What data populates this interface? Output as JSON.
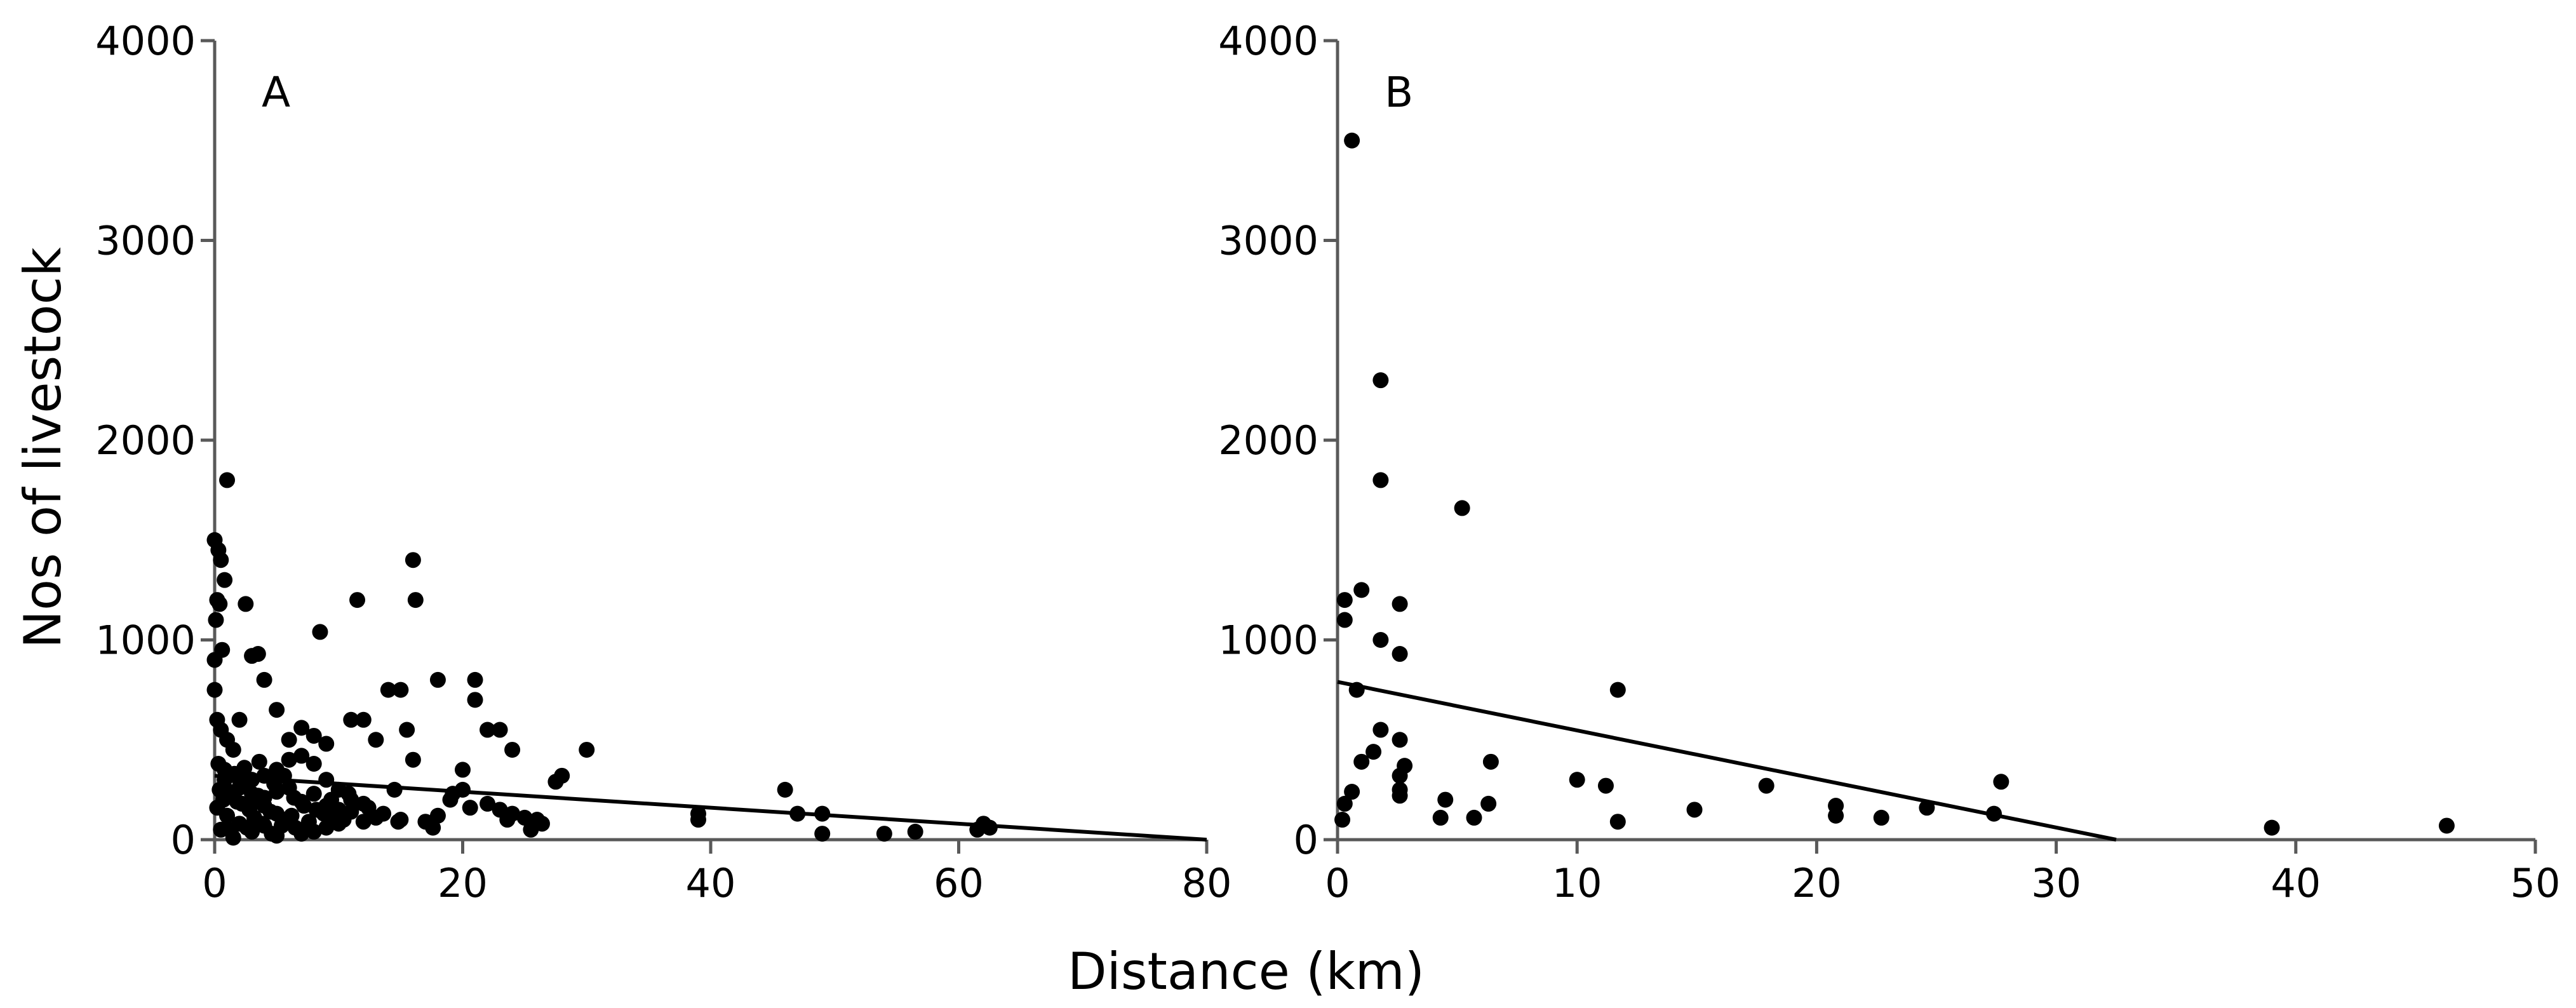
{
  "figure": {
    "ylabel": "Nos of livestock",
    "xlabel": "Distance (km)"
  },
  "chart_data": [
    {
      "type": "scatter",
      "panel_label": "A",
      "xlim": [
        0,
        80
      ],
      "ylim": [
        0,
        4000
      ],
      "x_ticks": [
        0,
        20,
        40,
        60,
        80
      ],
      "y_ticks": [
        0,
        1000,
        2000,
        3000,
        4000
      ],
      "points": [
        [
          0,
          1500
        ],
        [
          0.3,
          1450
        ],
        [
          0.5,
          1400
        ],
        [
          0.8,
          1300
        ],
        [
          0.2,
          1200
        ],
        [
          0.4,
          1180
        ],
        [
          0.1,
          1100
        ],
        [
          1,
          1800
        ],
        [
          0,
          900
        ],
        [
          0.6,
          950
        ],
        [
          0,
          750
        ],
        [
          0.2,
          600
        ],
        [
          0.5,
          550
        ],
        [
          1,
          500
        ],
        [
          1.5,
          450
        ],
        [
          0.3,
          380
        ],
        [
          0.8,
          350
        ],
        [
          2,
          300
        ],
        [
          2.5,
          280
        ],
        [
          0.4,
          250
        ],
        [
          1.2,
          240
        ],
        [
          3,
          230
        ],
        [
          3.5,
          220
        ],
        [
          0.7,
          200
        ],
        [
          1.8,
          190
        ],
        [
          2.2,
          180
        ],
        [
          4,
          170
        ],
        [
          0.2,
          160
        ],
        [
          2.8,
          150
        ],
        [
          4.5,
          140
        ],
        [
          5,
          130
        ],
        [
          1,
          120
        ],
        [
          3.2,
          110
        ],
        [
          5.5,
          100
        ],
        [
          6,
          90
        ],
        [
          2,
          80
        ],
        [
          4,
          70
        ],
        [
          6.5,
          60
        ],
        [
          0.5,
          50
        ],
        [
          3,
          40
        ],
        [
          7,
          30
        ],
        [
          5,
          20
        ],
        [
          1.5,
          10
        ],
        [
          3,
          300
        ],
        [
          4,
          320
        ],
        [
          5,
          350
        ],
        [
          6,
          400
        ],
        [
          7,
          420
        ],
        [
          8,
          380
        ],
        [
          9,
          300
        ],
        [
          10,
          250
        ],
        [
          11,
          200
        ],
        [
          12,
          180
        ],
        [
          2,
          600
        ],
        [
          3,
          920
        ],
        [
          3.5,
          930
        ],
        [
          4,
          800
        ],
        [
          5,
          650
        ],
        [
          2.5,
          1180
        ],
        [
          6,
          500
        ],
        [
          7,
          560
        ],
        [
          8,
          520
        ],
        [
          9,
          480
        ],
        [
          8.5,
          1040
        ],
        [
          11,
          600
        ],
        [
          12,
          600
        ],
        [
          11.5,
          1200
        ],
        [
          13,
          500
        ],
        [
          14,
          750
        ],
        [
          15,
          750
        ],
        [
          16,
          1400
        ],
        [
          16.2,
          1200
        ],
        [
          15.5,
          550
        ],
        [
          16,
          400
        ],
        [
          14.5,
          250
        ],
        [
          18,
          800
        ],
        [
          20,
          350
        ],
        [
          21,
          800
        ],
        [
          21,
          700
        ],
        [
          22,
          550
        ],
        [
          23,
          550
        ],
        [
          24,
          450
        ],
        [
          28,
          320
        ],
        [
          30,
          450
        ],
        [
          27.5,
          290
        ],
        [
          19,
          200
        ],
        [
          22,
          180
        ],
        [
          23,
          150
        ],
        [
          24,
          130
        ],
        [
          25,
          110
        ],
        [
          26,
          100
        ],
        [
          25.5,
          50
        ],
        [
          20,
          250
        ],
        [
          18,
          120
        ],
        [
          17,
          90
        ],
        [
          15,
          100
        ],
        [
          13,
          110
        ],
        [
          12,
          90
        ],
        [
          10,
          80
        ],
        [
          9,
          60
        ],
        [
          8,
          40
        ],
        [
          39,
          100
        ],
        [
          39,
          130
        ],
        [
          46,
          250
        ],
        [
          47,
          130
        ],
        [
          49,
          130
        ],
        [
          49,
          30
        ],
        [
          54,
          30
        ],
        [
          56.5,
          40
        ],
        [
          61.5,
          50
        ],
        [
          62,
          80
        ],
        [
          62.5,
          60
        ],
        [
          1,
          220
        ],
        [
          2,
          260
        ],
        [
          3,
          180
        ],
        [
          4,
          210
        ],
        [
          5,
          240
        ],
        [
          6,
          260
        ],
        [
          7,
          190
        ],
        [
          8,
          230
        ],
        [
          9,
          170
        ],
        [
          10,
          150
        ],
        [
          11,
          140
        ],
        [
          0.8,
          300
        ],
        [
          1.6,
          330
        ],
        [
          2.4,
          360
        ],
        [
          3.6,
          390
        ],
        [
          4.8,
          280
        ],
        [
          5.6,
          320
        ],
        [
          6.4,
          210
        ],
        [
          7.2,
          170
        ],
        [
          8.8,
          130
        ],
        [
          9.6,
          110
        ],
        [
          10.4,
          100
        ],
        [
          1.2,
          50
        ],
        [
          2.6,
          60
        ],
        [
          3.8,
          80
        ],
        [
          4.6,
          30
        ],
        [
          5.4,
          70
        ],
        [
          6.2,
          120
        ],
        [
          7.6,
          90
        ],
        [
          8.2,
          150
        ],
        [
          9.4,
          200
        ],
        [
          10.8,
          230
        ],
        [
          12.4,
          160
        ],
        [
          13.6,
          130
        ],
        [
          14.8,
          90
        ],
        [
          17.6,
          60
        ],
        [
          19.2,
          230
        ],
        [
          20.6,
          160
        ],
        [
          23.6,
          100
        ],
        [
          26.4,
          80
        ]
      ],
      "trendline": {
        "x": [
          0,
          80
        ],
        "y": [
          320,
          0
        ]
      }
    },
    {
      "type": "scatter",
      "panel_label": "B",
      "xlim": [
        0,
        50
      ],
      "ylim": [
        0,
        4000
      ],
      "x_ticks": [
        0,
        10,
        20,
        30,
        40,
        50
      ],
      "y_ticks": [
        0,
        1000,
        2000,
        3000,
        4000
      ],
      "points": [
        [
          0.6,
          3500
        ],
        [
          1.8,
          2300
        ],
        [
          1.8,
          1800
        ],
        [
          5.2,
          1660
        ],
        [
          1.0,
          1250
        ],
        [
          0.3,
          1200
        ],
        [
          2.6,
          1180
        ],
        [
          0.3,
          1100
        ],
        [
          1.8,
          1000
        ],
        [
          2.6,
          930
        ],
        [
          0.8,
          750
        ],
        [
          11.7,
          750
        ],
        [
          1.8,
          550
        ],
        [
          2.6,
          500
        ],
        [
          1.5,
          440
        ],
        [
          1.0,
          390
        ],
        [
          6.4,
          390
        ],
        [
          2.8,
          370
        ],
        [
          2.6,
          320
        ],
        [
          10,
          300
        ],
        [
          11.2,
          270
        ],
        [
          27.7,
          290
        ],
        [
          17.9,
          270
        ],
        [
          2.6,
          250
        ],
        [
          2.6,
          220
        ],
        [
          4.5,
          200
        ],
        [
          0.3,
          180
        ],
        [
          6.3,
          180
        ],
        [
          20.8,
          170
        ],
        [
          24.6,
          160
        ],
        [
          14.9,
          150
        ],
        [
          27.4,
          130
        ],
        [
          20.8,
          120
        ],
        [
          22.7,
          110
        ],
        [
          4.3,
          110
        ],
        [
          5.7,
          110
        ],
        [
          0.2,
          100
        ],
        [
          11.7,
          90
        ],
        [
          39,
          60
        ],
        [
          46.3,
          70
        ],
        [
          0.6,
          240
        ]
      ],
      "trendline": {
        "x": [
          0,
          32.5
        ],
        "y": [
          790,
          0
        ]
      }
    }
  ]
}
